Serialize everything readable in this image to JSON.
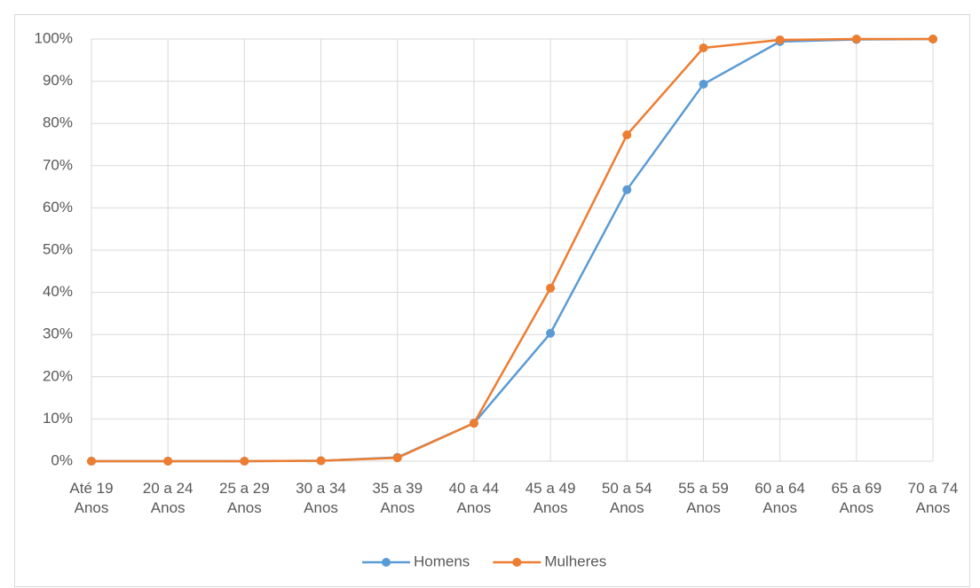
{
  "chart_data": {
    "type": "line",
    "categories": [
      "Até 19 Anos",
      "20 a 24 Anos",
      "25 a 29 Anos",
      "30 a 34 Anos",
      "35 a 39 Anos",
      "40 a 44 Anos",
      "45 a 49 Anos",
      "50 a 54 Anos",
      "55 a 59 Anos",
      "60 a 64 Anos",
      "65 a 69 Anos",
      "70 a 74 Anos"
    ],
    "series": [
      {
        "name": "Homens",
        "color": "#5b9bd5",
        "values": [
          0,
          0,
          0,
          0.1,
          0.9,
          9.0,
          30.3,
          64.3,
          89.3,
          99.4,
          99.9,
          100
        ]
      },
      {
        "name": "Mulheres",
        "color": "#ed7d31",
        "values": [
          0,
          0,
          0,
          0.1,
          0.8,
          9.0,
          41.0,
          77.3,
          97.9,
          99.8,
          100,
          100
        ]
      }
    ],
    "ylim": [
      0,
      100
    ],
    "yticks": [
      {
        "value": 0,
        "label": "0%"
      },
      {
        "value": 10,
        "label": "10%"
      },
      {
        "value": 20,
        "label": "20%"
      },
      {
        "value": 30,
        "label": "30%"
      },
      {
        "value": 40,
        "label": "40%"
      },
      {
        "value": 50,
        "label": "50%"
      },
      {
        "value": 60,
        "label": "60%"
      },
      {
        "value": 70,
        "label": "70%"
      },
      {
        "value": 80,
        "label": "80%"
      },
      {
        "value": 90,
        "label": "90%"
      },
      {
        "value": 100,
        "label": "100%"
      }
    ],
    "grid": true,
    "legend": "bottom"
  }
}
